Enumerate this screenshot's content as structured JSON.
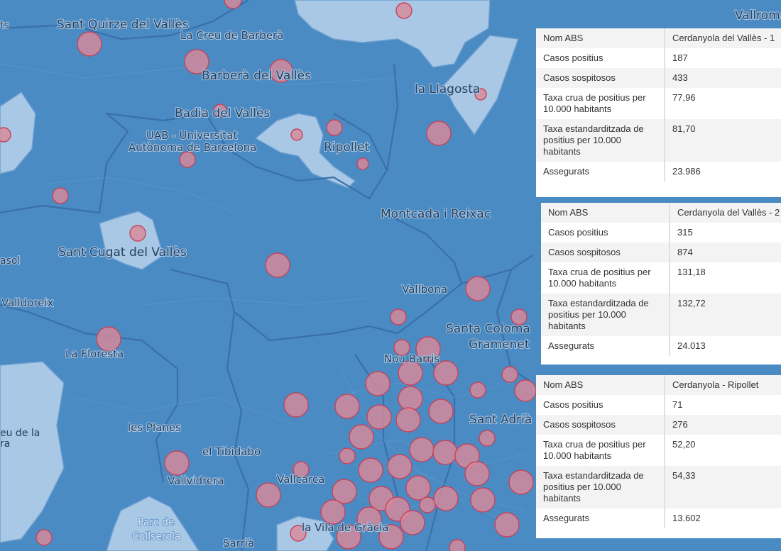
{
  "map": {
    "labels": {
      "sant_quirze": "Sant Quirze del Vallès",
      "la_creu": "La Creu de Barberà",
      "barbera": "Barberà del Vallès",
      "badia": "Badia del Vallès",
      "la_llagosta": "la Llagosta",
      "vallroma": "Vallroma",
      "uab_1": "UAB - Universitat",
      "uab_2": "Autònoma de Barcelona",
      "ripollet": "Ripollet",
      "montcada": "Montcada i Reixac",
      "sant_cugat": "Sant Cugat del Vallès",
      "vallbona": "Vallbona",
      "santa_coloma_1": "Santa Coloma",
      "santa_coloma_2": "Gramenet",
      "nou_barris": "Nou Barris",
      "la_floresta": "La Floresta",
      "valldoreix": "Valldoreix",
      "asol": "asol",
      "sant_adria": "Sant Adrià",
      "les_planes": "les Planes",
      "el_tibidabo": "el Tibidabo",
      "eu_de_la_1": "eu de la",
      "eu_de_la_2": "ra",
      "vallvidrera": "Vallvidrera",
      "vallcarca": "Vallcarca",
      "parc_1": "Parc de",
      "parc_2": "Collserola",
      "la_vila": "la Vila de Gràcia",
      "sarria": "Sarrià",
      "ts": "ts"
    }
  },
  "popups": [
    {
      "rows": [
        {
          "key": "Nom ABS",
          "value": "Cerdanyola del Vallès - 1"
        },
        {
          "key": "Casos positius",
          "value": "187"
        },
        {
          "key": "Casos sospitosos",
          "value": "433"
        },
        {
          "key": "Taxa crua de positius per 10.000 habitants",
          "value": "77,96"
        },
        {
          "key": "Taxa estandarditzada de positius per 10.000 habitants",
          "value": "81,70"
        },
        {
          "key": "Assegurats",
          "value": "23.986"
        }
      ]
    },
    {
      "rows": [
        {
          "key": "Nom ABS",
          "value": "Cerdanyola del Vallès - 2"
        },
        {
          "key": "Casos positius",
          "value": "315"
        },
        {
          "key": "Casos sospitosos",
          "value": "874"
        },
        {
          "key": "Taxa crua de positius per 10.000 habitants",
          "value": "131,18"
        },
        {
          "key": "Taxa estandarditzada de positius per 10.000 habitants",
          "value": "132,72"
        },
        {
          "key": "Assegurats",
          "value": "24.013"
        }
      ]
    },
    {
      "rows": [
        {
          "key": "Nom ABS",
          "value": "Cerdanyola - Ripollet"
        },
        {
          "key": "Casos positius",
          "value": "71"
        },
        {
          "key": "Casos sospitosos",
          "value": "276"
        },
        {
          "key": "Taxa crua de positius per 10.000 habitants",
          "value": "52,20"
        },
        {
          "key": "Taxa estandarditzada de positius per 10.000 habitants",
          "value": "54,33"
        },
        {
          "key": "Assegurats",
          "value": "13.602"
        }
      ]
    }
  ],
  "colors": {
    "water_region": "#4a8bc4",
    "light_region": "#a9c8e6",
    "bubble_fill": "#d98a9a",
    "bubble_stroke": "#c4445c"
  }
}
